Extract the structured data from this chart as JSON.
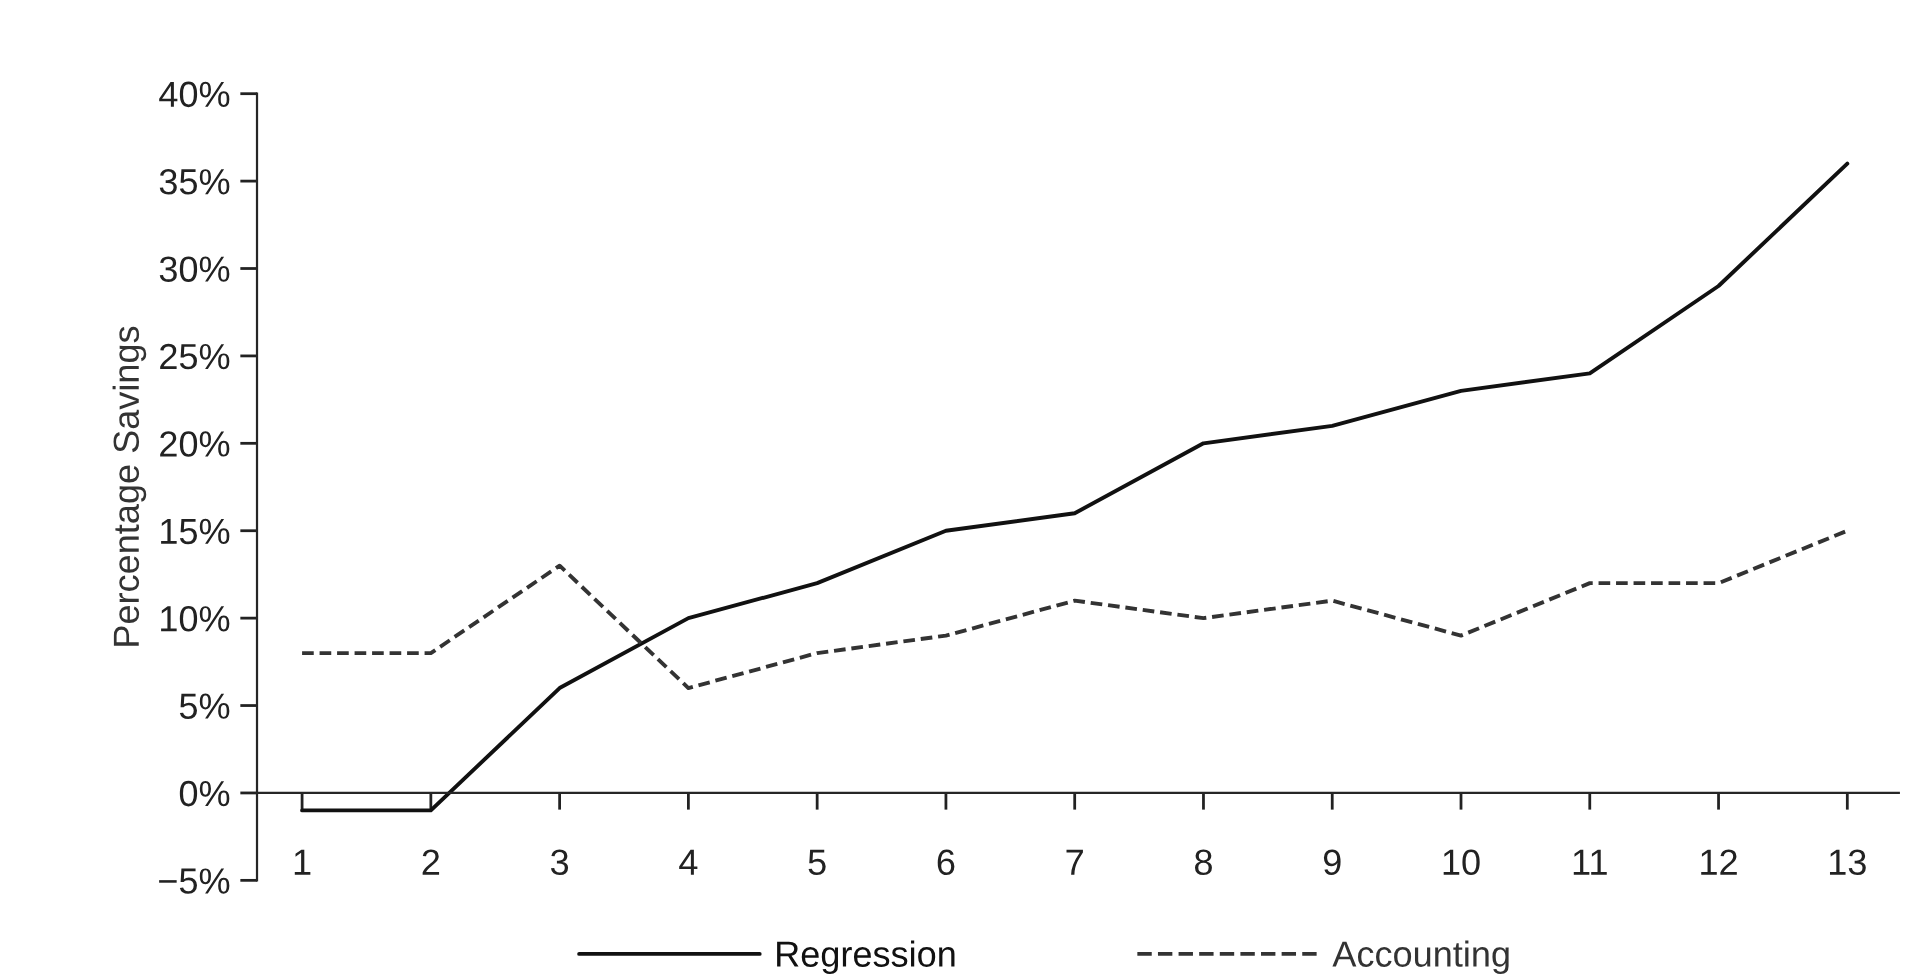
{
  "chart_data": {
    "type": "line",
    "ylabel": "Percentage Savings",
    "categories": [
      "1",
      "2",
      "3",
      "4",
      "5",
      "6",
      "7",
      "8",
      "9",
      "10",
      "11",
      "12",
      "13"
    ],
    "series": [
      {
        "name": "Regression",
        "color": "#111111",
        "line_style": "solid",
        "values": [
          -1,
          -1,
          6,
          10,
          12,
          15,
          16,
          20,
          21,
          23,
          24,
          29,
          36
        ]
      },
      {
        "name": "Accounting",
        "color": "#333333",
        "line_style": "dashed",
        "values": [
          8,
          8,
          13,
          6,
          8,
          9,
          11,
          10,
          11,
          9,
          12,
          12,
          15
        ]
      }
    ],
    "ylim": [
      -5,
      40
    ],
    "yticks": [
      {
        "value": -5,
        "label": "−5%"
      },
      {
        "value": 0,
        "label": "0%"
      },
      {
        "value": 5,
        "label": "5%"
      },
      {
        "value": 10,
        "label": "10%"
      },
      {
        "value": 15,
        "label": "15%"
      },
      {
        "value": 20,
        "label": "20%"
      },
      {
        "value": 25,
        "label": "25%"
      },
      {
        "value": 30,
        "label": "30%"
      },
      {
        "value": 35,
        "label": "35%"
      },
      {
        "value": 40,
        "label": "40%"
      }
    ],
    "grid": false,
    "legend": "bottom",
    "marker": "none"
  }
}
